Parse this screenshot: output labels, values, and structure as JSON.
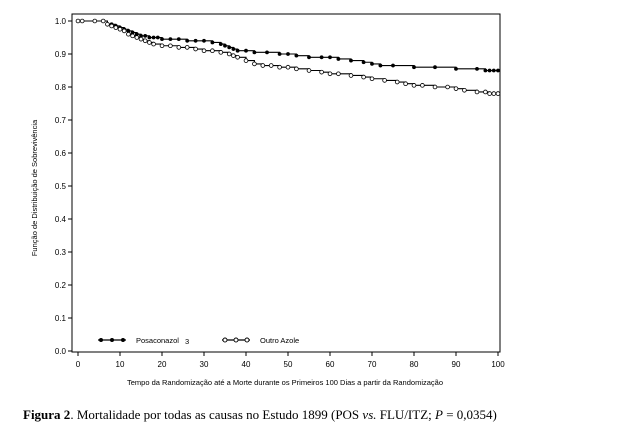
{
  "chart_data": {
    "type": "line",
    "xlabel": "Tempo da Randomização até a Morte durante os Primeiros 100 Dias a partir da Randomização",
    "ylabel": "Função de Distribuição de Sobrevivência",
    "xlim": [
      0,
      100
    ],
    "ylim": [
      0,
      1
    ],
    "xticks": [
      0,
      10,
      20,
      30,
      40,
      50,
      60,
      70,
      80,
      90,
      100
    ],
    "yticks": [
      0.0,
      0.1,
      0.2,
      0.3,
      0.4,
      0.5,
      0.6,
      0.7,
      0.8,
      0.9,
      1.0
    ],
    "ytick_labels": [
      "0.0",
      "0.1",
      "0.2",
      "0.3",
      "0.4",
      "0.5",
      "0.6",
      "0.7",
      "0.8",
      "0.9",
      "1.0"
    ],
    "grid": false,
    "legend_position": "bottom-left",
    "series": [
      {
        "name": "Posaconazol",
        "marker": "filled-circle",
        "color": "#000000",
        "x": [
          0,
          1,
          4,
          6,
          7,
          8,
          9,
          10,
          11,
          12,
          13,
          14,
          15,
          16,
          17,
          18,
          19,
          20,
          22,
          24,
          26,
          28,
          30,
          32,
          34,
          35,
          36,
          37,
          38,
          40,
          42,
          45,
          48,
          50,
          52,
          55,
          58,
          60,
          62,
          65,
          68,
          70,
          72,
          75,
          80,
          85,
          90,
          95,
          97,
          98,
          99,
          100
        ],
        "y": [
          1.0,
          1.0,
          1.0,
          1.0,
          0.99,
          0.99,
          0.985,
          0.98,
          0.975,
          0.97,
          0.965,
          0.96,
          0.955,
          0.955,
          0.95,
          0.95,
          0.95,
          0.945,
          0.945,
          0.945,
          0.94,
          0.94,
          0.94,
          0.935,
          0.93,
          0.925,
          0.92,
          0.915,
          0.91,
          0.91,
          0.905,
          0.905,
          0.9,
          0.9,
          0.895,
          0.89,
          0.89,
          0.89,
          0.885,
          0.88,
          0.875,
          0.87,
          0.865,
          0.865,
          0.86,
          0.86,
          0.855,
          0.855,
          0.85,
          0.85,
          0.85,
          0.85
        ]
      },
      {
        "name": "Outro Azole",
        "marker": "open-circle",
        "color": "#000000",
        "x": [
          0,
          1,
          4,
          6,
          7,
          8,
          9,
          10,
          11,
          12,
          13,
          14,
          15,
          16,
          17,
          18,
          20,
          22,
          24,
          26,
          28,
          30,
          32,
          34,
          36,
          37,
          38,
          40,
          42,
          44,
          46,
          48,
          50,
          52,
          55,
          58,
          60,
          62,
          65,
          68,
          70,
          73,
          76,
          78,
          80,
          82,
          85,
          88,
          90,
          92,
          95,
          97,
          98,
          99,
          100
        ],
        "y": [
          1.0,
          1.0,
          1.0,
          1.0,
          0.99,
          0.985,
          0.98,
          0.975,
          0.97,
          0.96,
          0.955,
          0.95,
          0.945,
          0.94,
          0.935,
          0.93,
          0.925,
          0.925,
          0.92,
          0.92,
          0.915,
          0.91,
          0.91,
          0.905,
          0.9,
          0.895,
          0.89,
          0.88,
          0.87,
          0.865,
          0.865,
          0.86,
          0.86,
          0.855,
          0.85,
          0.845,
          0.84,
          0.84,
          0.835,
          0.83,
          0.825,
          0.82,
          0.815,
          0.81,
          0.805,
          0.805,
          0.8,
          0.8,
          0.795,
          0.79,
          0.785,
          0.785,
          0.78,
          0.78,
          0.78
        ]
      }
    ]
  },
  "legend": {
    "posaconazol": "Posaconazol",
    "posaconazol_suffix": "3",
    "outro_azole": "Outro Azole"
  },
  "caption": {
    "label": "Figura 2",
    "text": ". Mortalidade por todas as causas no Estudo 1899 (POS ",
    "vs": "vs.",
    "text2": " FLU/ITZ; ",
    "p": "P",
    "text3": " = 0,0354)"
  }
}
